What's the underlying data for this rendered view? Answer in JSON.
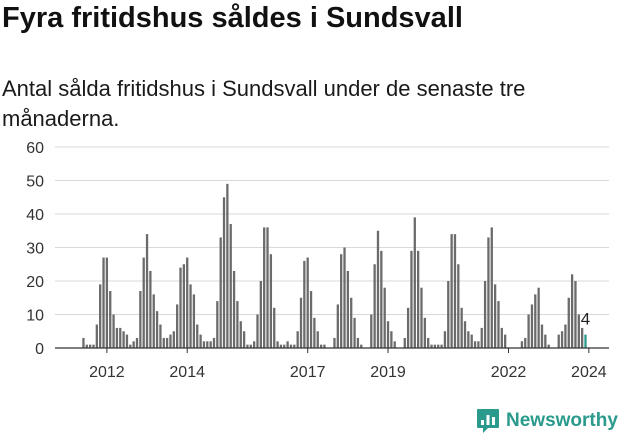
{
  "title": "Fyra fritidshus såldes i Sundsvall",
  "subtitle": "Antal sålda fritidshus i Sundsvall under de senaste tre månaderna.",
  "brand": {
    "name": "Newsworthy",
    "icon": "newsworthy-logo-icon",
    "color": "#2a9a8c"
  },
  "chart_data": {
    "type": "bar",
    "title": "",
    "xlabel": "",
    "ylabel": "",
    "ylim": [
      0,
      60
    ],
    "yticks": [
      0,
      10,
      20,
      30,
      40,
      50,
      60
    ],
    "grid": true,
    "x_tick_labels": [
      "2012",
      "2014",
      "2017",
      "2019",
      "2022",
      "2024"
    ],
    "x_tick_positions": [
      7,
      31,
      67,
      91,
      127,
      151
    ],
    "bar_color": "#6b6b6b",
    "highlight_color": "#2a9a8c",
    "highlight_label": "4",
    "values": [
      3,
      1,
      1,
      1,
      7,
      19,
      27,
      27,
      17,
      10,
      6,
      6,
      5,
      4,
      1,
      2,
      3,
      17,
      27,
      34,
      23,
      16,
      11,
      7,
      3,
      3,
      4,
      5,
      13,
      24,
      25,
      27,
      19,
      16,
      7,
      4,
      2,
      2,
      2,
      3,
      14,
      33,
      45,
      49,
      37,
      23,
      14,
      8,
      5,
      1,
      1,
      2,
      10,
      20,
      36,
      36,
      28,
      12,
      2,
      1,
      1,
      2,
      1,
      1,
      5,
      15,
      26,
      27,
      17,
      9,
      5,
      1,
      1,
      0,
      0,
      3,
      13,
      28,
      30,
      23,
      15,
      9,
      3,
      1,
      0,
      0,
      10,
      25,
      35,
      29,
      18,
      8,
      5,
      2,
      0,
      0,
      3,
      12,
      29,
      39,
      29,
      18,
      9,
      3,
      1,
      1,
      1,
      1,
      5,
      20,
      34,
      34,
      25,
      12,
      8,
      5,
      4,
      2,
      2,
      6,
      20,
      33,
      36,
      19,
      14,
      6,
      4,
      0,
      0,
      0,
      0,
      2,
      3,
      10,
      13,
      16,
      18,
      7,
      4,
      1,
      0,
      0,
      4,
      5,
      7,
      15,
      22,
      20,
      10,
      6,
      4
    ]
  }
}
